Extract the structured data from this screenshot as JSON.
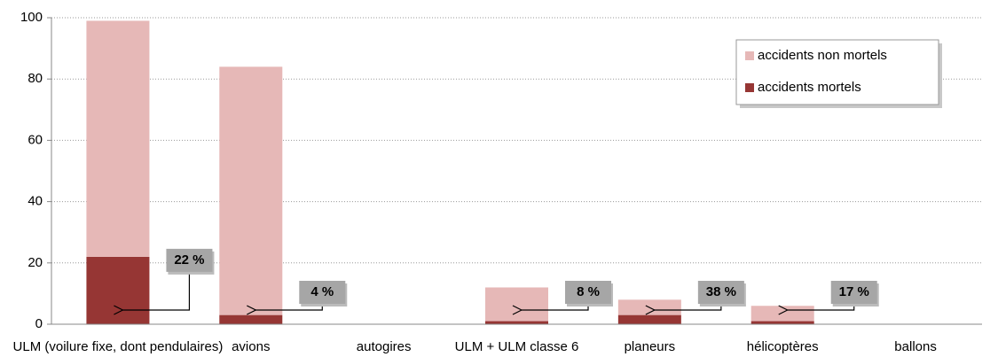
{
  "chart_data": {
    "type": "bar",
    "stacked": true,
    "categories": [
      "ULM (voilure fixe, dont pendulaires)",
      "avions",
      "autogires",
      "ULM + ULM classe 6",
      "planeurs",
      "hélicoptères",
      "ballons"
    ],
    "series": [
      {
        "name": "accidents mortels",
        "color": "#963634",
        "values": [
          22,
          3,
          0,
          1,
          3,
          1,
          0
        ]
      },
      {
        "name": "accidents non mortels",
        "color": "#e6b8b7",
        "values": [
          77,
          81,
          0,
          11,
          5,
          5,
          0
        ]
      }
    ],
    "annotations": [
      "22 %",
      "4 %",
      null,
      "8 %",
      "38 %",
      "17 %",
      null
    ],
    "ylim": [
      0,
      100
    ],
    "yticks": [
      0,
      20,
      40,
      60,
      80,
      100
    ],
    "grid": true,
    "legend": "upper right"
  }
}
